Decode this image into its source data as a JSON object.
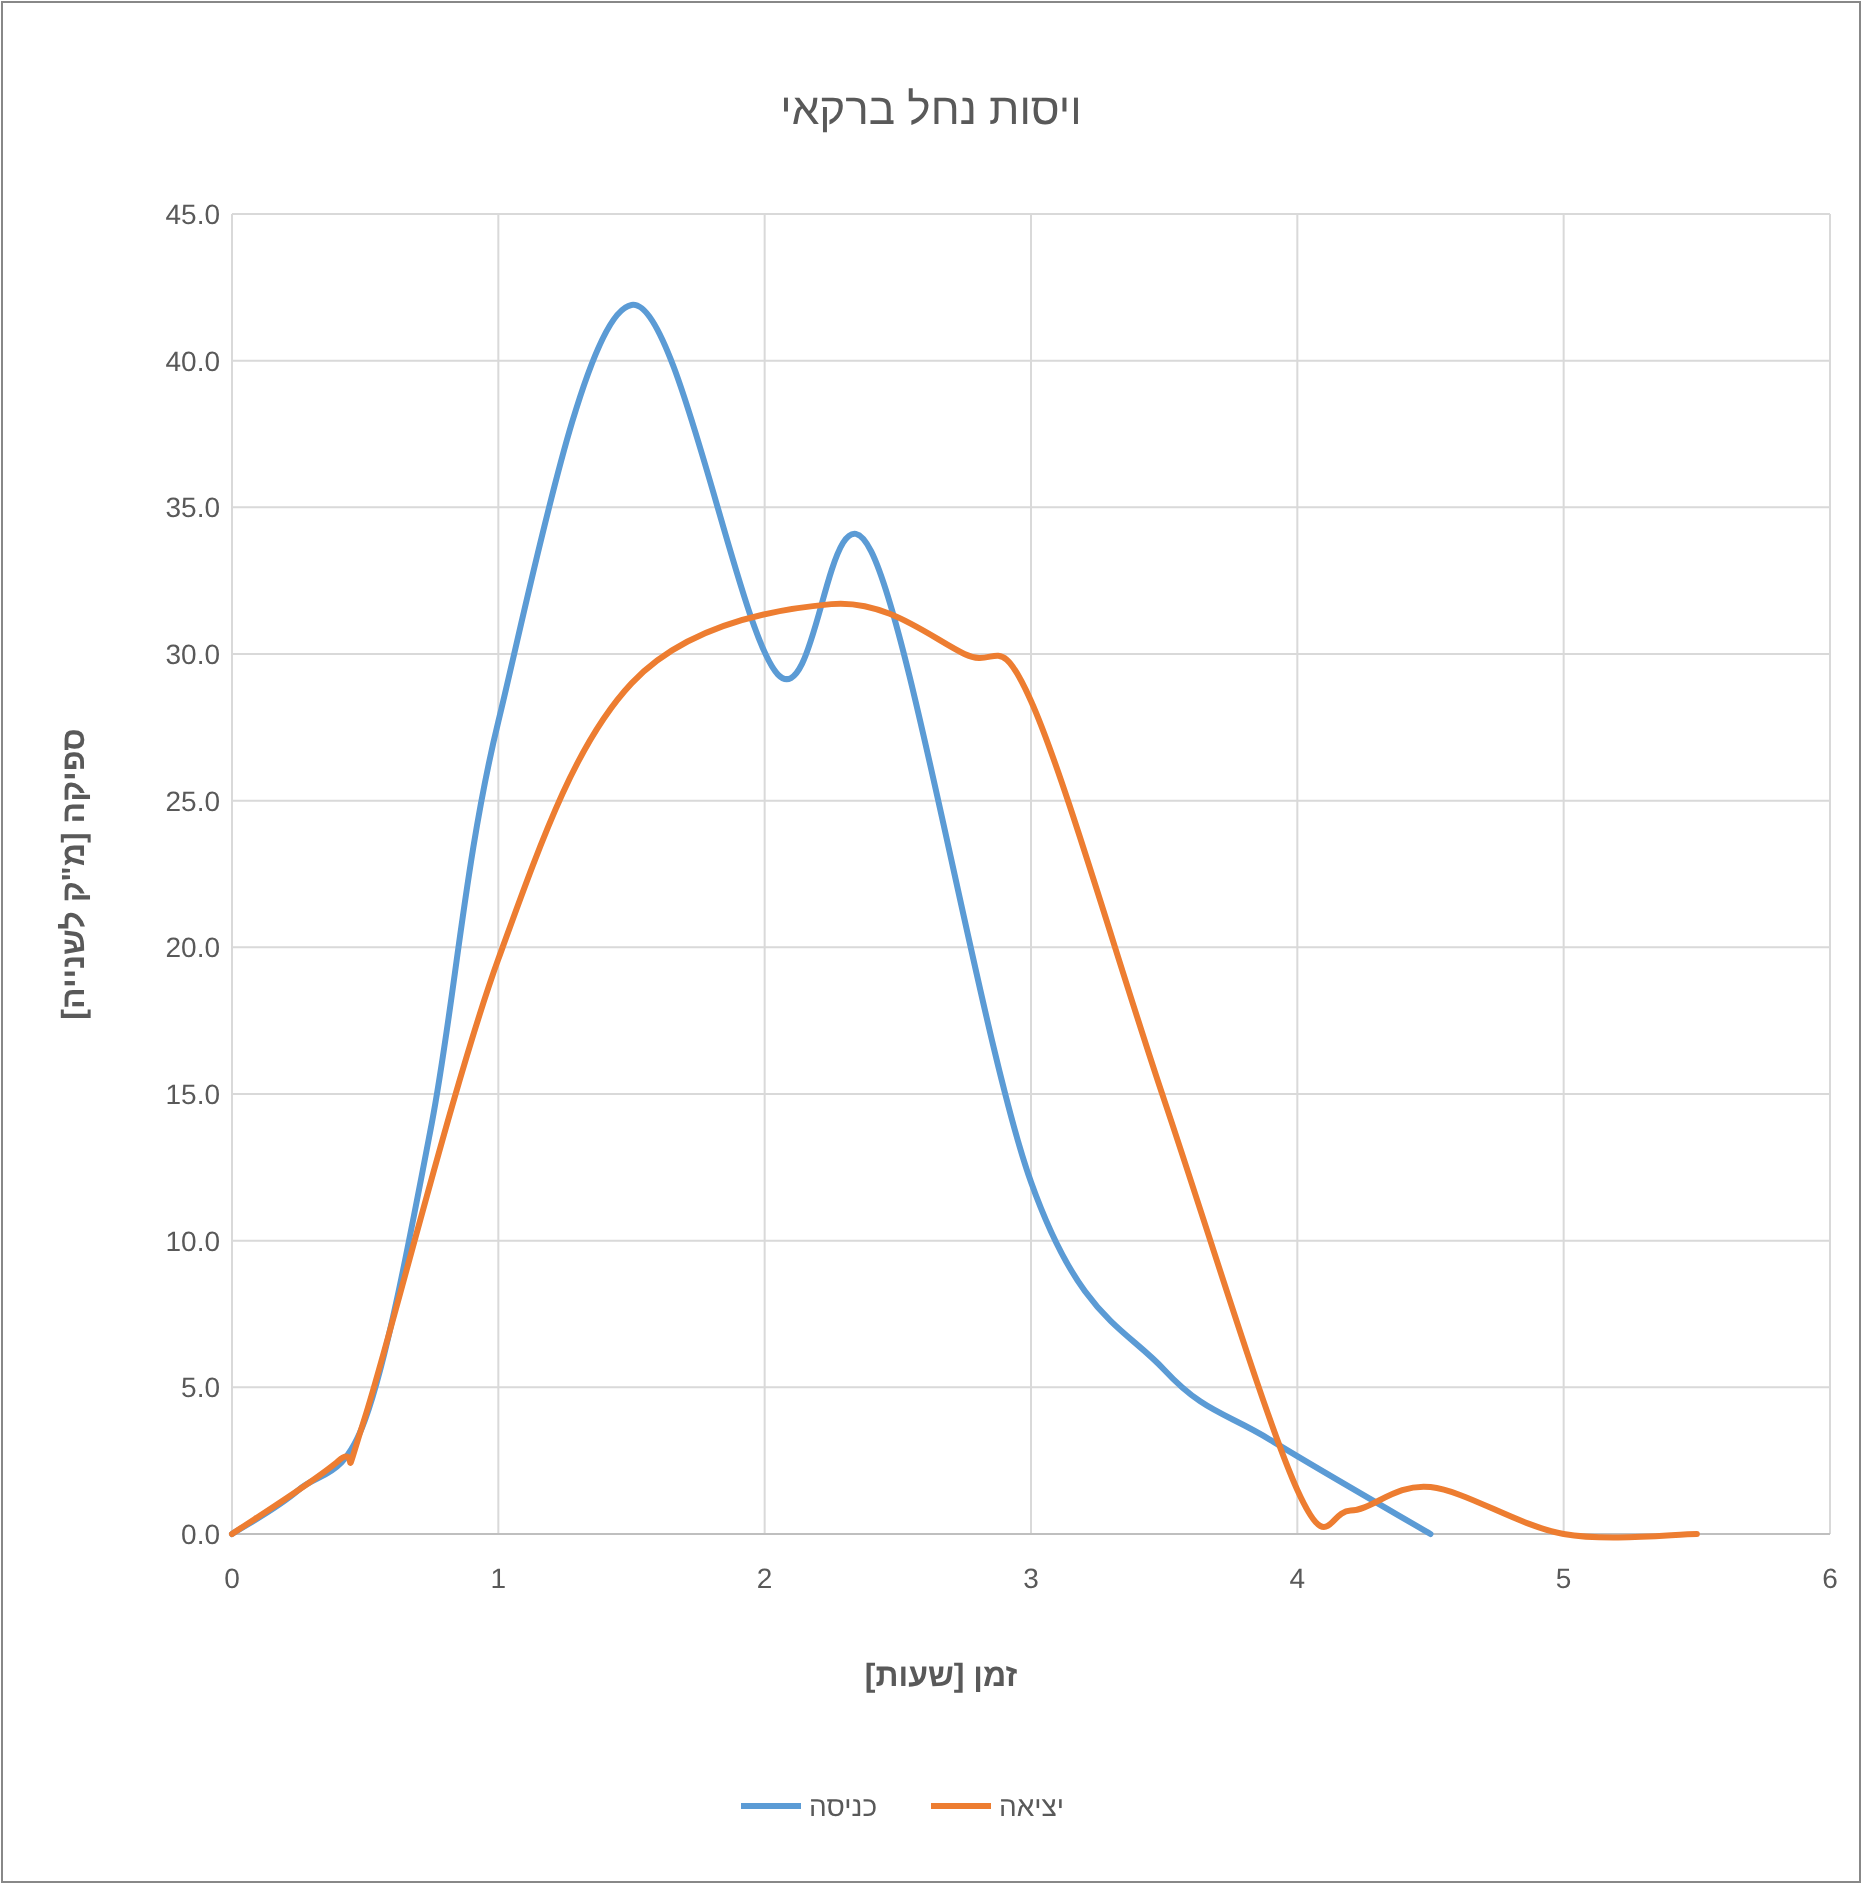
{
  "chart_data": {
    "type": "line",
    "title": "ויסות נחל ברקאי",
    "xlabel": "זמן [שעות]",
    "ylabel": "ספיקה [מ\"ק לשנייה]",
    "xlim": [
      0,
      6
    ],
    "ylim": [
      0,
      45
    ],
    "xticks": [
      0,
      1,
      2,
      3,
      4,
      5,
      6
    ],
    "yticks": [
      {
        "value": 0,
        "label": "0.0"
      },
      {
        "value": 5,
        "label": "5.0"
      },
      {
        "value": 10,
        "label": "10.0"
      },
      {
        "value": 15,
        "label": "15.0"
      },
      {
        "value": 20,
        "label": "20.0"
      },
      {
        "value": 25,
        "label": "25.0"
      },
      {
        "value": 30,
        "label": "30.0"
      },
      {
        "value": 35,
        "label": "35.0"
      },
      {
        "value": 40,
        "label": "40.0"
      },
      {
        "value": 45,
        "label": "45.0"
      }
    ],
    "grid": true,
    "legend": "bottom",
    "marker": "none",
    "line_style": "solid",
    "series": [
      {
        "name": "כניסה",
        "color": "#5b9bd5",
        "x": [
          0,
          0.25,
          0.5,
          0.75,
          1,
          1.5,
          2.05,
          2.4,
          3,
          3.5,
          3.9,
          4.5
        ],
        "values": [
          0,
          1.5,
          3.9,
          14,
          27.7,
          41.9,
          29.3,
          33.5,
          12,
          5.6,
          3.2,
          0
        ]
      },
      {
        "name": "יציאה",
        "color": "#ed7d31",
        "x": [
          0,
          0.4,
          0.5,
          1,
          1.5,
          2.25,
          2.75,
          3,
          3.5,
          4,
          4.2,
          4.5,
          5,
          5.5
        ],
        "values": [
          0,
          2.5,
          4,
          19.6,
          29,
          31.7,
          30,
          28.4,
          14.8,
          1.5,
          0.8,
          1.6,
          0,
          0
        ]
      }
    ]
  }
}
